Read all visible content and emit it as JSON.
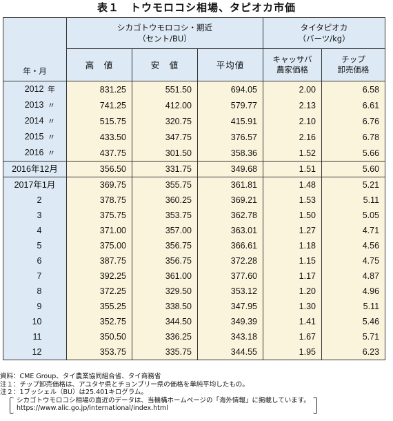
{
  "title": "表１　トウモロコシ相場、タピオカ市価",
  "header": {
    "year_month": "年・月",
    "chicago": "シカゴトウモロコシ・期近",
    "chicago_unit": "（セント/BU）",
    "thai": "タイタピオカ",
    "thai_unit": "（バーツ/kg）",
    "high": "高　値",
    "low": "安　値",
    "avg": "平均値",
    "cassava_1": "キャッサバ",
    "cassava_2": "農家価格",
    "chip_1": "チップ",
    "chip_2": "卸売価格"
  },
  "rows_annual": [
    {
      "label": "2012",
      "suffix": "年",
      "high": "831.25",
      "low": "551.50",
      "avg": "694.05",
      "cassava": "2.00",
      "chip": "6.58"
    },
    {
      "label": "2013",
      "suffix": "〃",
      "high": "741.25",
      "low": "412.00",
      "avg": "579.77",
      "cassava": "2.13",
      "chip": "6.61"
    },
    {
      "label": "2014",
      "suffix": "〃",
      "high": "515.75",
      "low": "320.75",
      "avg": "415.91",
      "cassava": "2.10",
      "chip": "6.76"
    },
    {
      "label": "2015",
      "suffix": "〃",
      "high": "433.50",
      "low": "347.75",
      "avg": "376.57",
      "cassava": "2.16",
      "chip": "6.78"
    },
    {
      "label": "2016",
      "suffix": "〃",
      "high": "437.75",
      "low": "301.50",
      "avg": "358.36",
      "cassava": "1.52",
      "chip": "5.66"
    }
  ],
  "row_dec2016": {
    "label": "2016年12月",
    "high": "356.50",
    "low": "331.75",
    "avg": "349.68",
    "cassava": "1.51",
    "chip": "5.60"
  },
  "rows_monthly": [
    {
      "label": "2017年1月",
      "high": "369.75",
      "low": "355.75",
      "avg": "361.81",
      "cassava": "1.48",
      "chip": "5.21"
    },
    {
      "label": "2",
      "high": "378.75",
      "low": "360.25",
      "avg": "369.21",
      "cassava": "1.53",
      "chip": "5.11"
    },
    {
      "label": "3",
      "high": "375.75",
      "low": "353.75",
      "avg": "362.78",
      "cassava": "1.50",
      "chip": "5.05"
    },
    {
      "label": "4",
      "high": "371.00",
      "low": "357.00",
      "avg": "363.01",
      "cassava": "1.27",
      "chip": "4.71"
    },
    {
      "label": "5",
      "high": "375.00",
      "low": "356.75",
      "avg": "366.61",
      "cassava": "1.18",
      "chip": "4.56"
    },
    {
      "label": "6",
      "high": "387.75",
      "low": "356.75",
      "avg": "372.28",
      "cassava": "1.15",
      "chip": "4.75"
    },
    {
      "label": "7",
      "high": "392.25",
      "low": "361.00",
      "avg": "377.60",
      "cassava": "1.17",
      "chip": "4.87"
    },
    {
      "label": "8",
      "high": "372.25",
      "low": "329.50",
      "avg": "353.12",
      "cassava": "1.20",
      "chip": "4.96"
    },
    {
      "label": "9",
      "high": "355.25",
      "low": "338.50",
      "avg": "347.95",
      "cassava": "1.30",
      "chip": "5.11"
    },
    {
      "label": "10",
      "high": "352.75",
      "low": "344.50",
      "avg": "349.39",
      "cassava": "1.41",
      "chip": "5.46"
    },
    {
      "label": "11",
      "high": "350.50",
      "low": "336.25",
      "avg": "343.18",
      "cassava": "1.67",
      "chip": "5.71"
    },
    {
      "label": "12",
      "high": "353.75",
      "low": "335.75",
      "avg": "344.55",
      "cassava": "1.95",
      "chip": "6.23"
    }
  ],
  "notes": {
    "source": "資料：CME Group、タイ農業協同組合省、タイ商務省",
    "note1": "注１：チップ卸売価格は、アユタヤ県とチョンブリー県の価格を単純平均したもの。",
    "note2": "注２：1ブッシェル（BU）は25.401キログラム。",
    "ref1": "シカゴトウモロコシ相場の直近のデータは、当機構ホームページの「海外情報」に掲載しています。",
    "ref2": "https://www.alic.go.jp/international/index.html"
  }
}
